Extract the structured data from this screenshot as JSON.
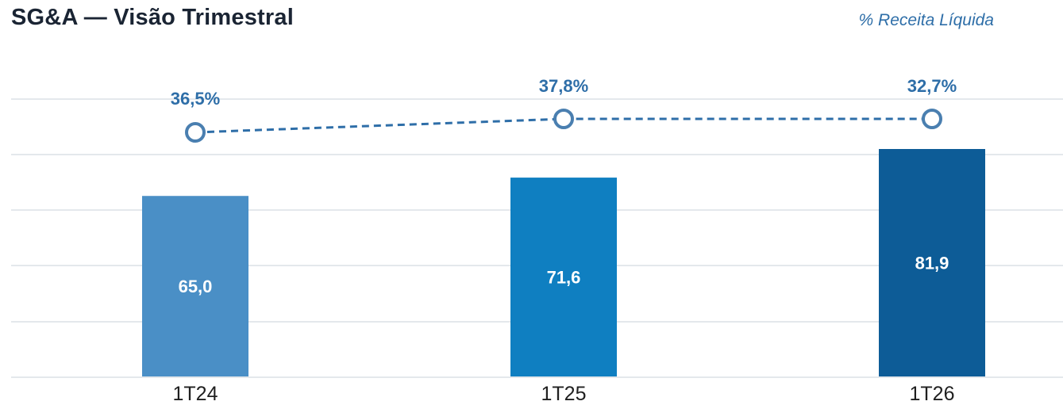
{
  "title": "SG&A — Visão Trimestral",
  "subtitle": "% Receita Líquida",
  "chart_data": {
    "type": "bar",
    "categories": [
      "1T24",
      "1T25",
      "1T26"
    ],
    "values": [
      65.0,
      71.6,
      81.9
    ],
    "value_labels": [
      "65,0",
      "71,6",
      "81,9"
    ],
    "bar_colors": [
      "#4a8fc6",
      "#0f7fc1",
      "#0d5c97"
    ],
    "line_series": {
      "values": [
        36.5,
        37.8,
        32.7
      ],
      "labels": [
        "36,5%",
        "37,8%",
        "32,7%"
      ],
      "style": "dashed",
      "color": "#2e6ea8"
    },
    "grid": true,
    "legend": "none"
  }
}
